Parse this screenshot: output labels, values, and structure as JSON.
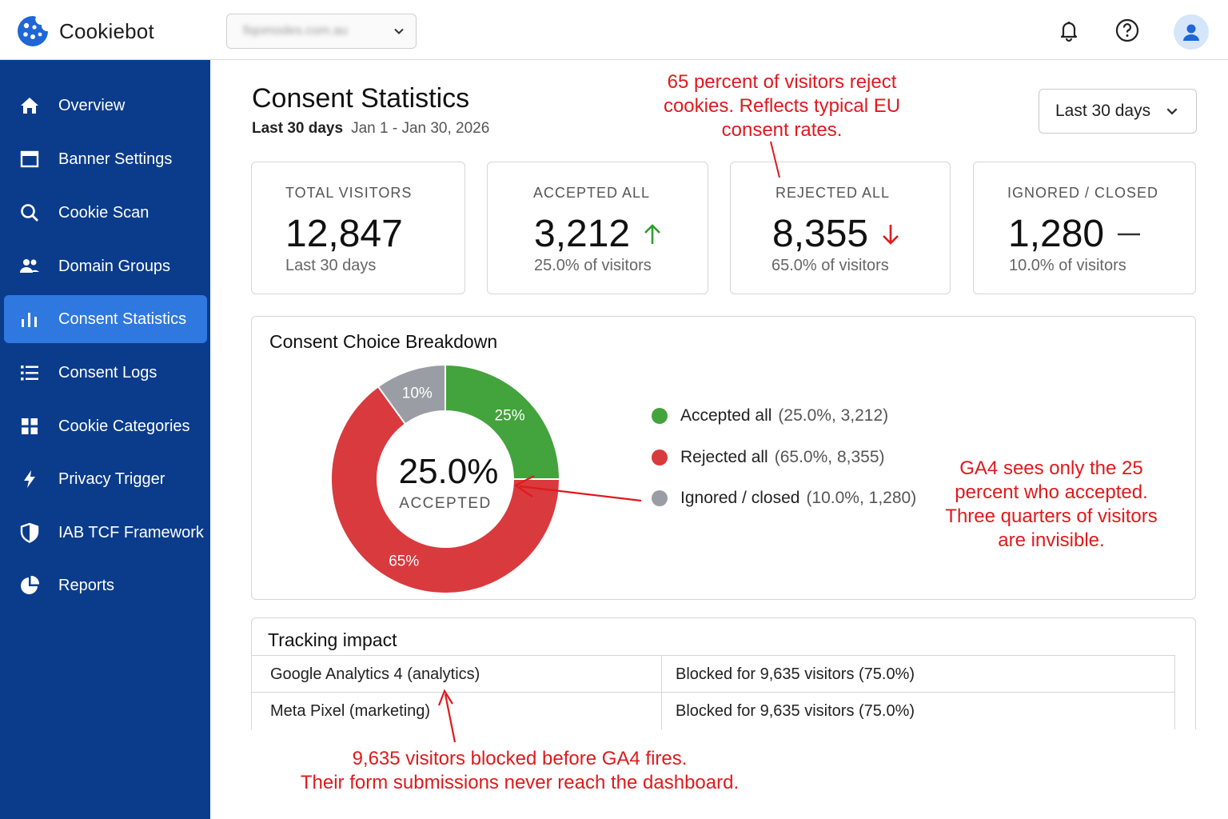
{
  "app": {
    "name": "Cookiebot",
    "domain_selector": "fiqomodes.com.au"
  },
  "sidebar": {
    "items": [
      {
        "label": "Overview",
        "icon": "home-icon"
      },
      {
        "label": "Banner Settings",
        "icon": "window-icon"
      },
      {
        "label": "Cookie Scan",
        "icon": "search-icon"
      },
      {
        "label": "Domain Groups",
        "icon": "users-icon"
      },
      {
        "label": "Consent Statistics",
        "icon": "bar-chart-icon",
        "active": true
      },
      {
        "label": "Consent Logs",
        "icon": "list-icon"
      },
      {
        "label": "Cookie Categories",
        "icon": "grid-icon"
      },
      {
        "label": "Privacy Trigger",
        "icon": "lightning-icon"
      },
      {
        "label": "IAB TCF Framework",
        "icon": "shield-icon"
      },
      {
        "label": "Reports",
        "icon": "pie-chart-icon"
      }
    ]
  },
  "page": {
    "title": "Consent Statistics",
    "period_label": "Last 30 days",
    "date_range": "Jan 1 - Jan 30, 2026",
    "range_select": "Last 30 days"
  },
  "stats": [
    {
      "label": "TOTAL VISITORS",
      "value": "12,847",
      "sub": "Last 30 days",
      "trend": "none"
    },
    {
      "label": "ACCEPTED ALL",
      "value": "3,212",
      "sub": "25.0% of visitors",
      "trend": "up"
    },
    {
      "label": "REJECTED ALL",
      "value": "8,355",
      "sub": "65.0% of visitors",
      "trend": "down"
    },
    {
      "label": "IGNORED / CLOSED",
      "value": "1,280",
      "sub": "10.0% of visitors",
      "trend": "flat"
    }
  ],
  "breakdown": {
    "title": "Consent Choice Breakdown",
    "center_value": "25.0%",
    "center_label": "ACCEPTED",
    "slice_labels": [
      "25%",
      "65%",
      "10%"
    ],
    "legend": [
      {
        "name": "Accepted all",
        "detail": "(25.0%, 3,212)",
        "color": "#43a33c"
      },
      {
        "name": "Rejected all",
        "detail": "(65.0%, 8,355)",
        "color": "#d93a3e"
      },
      {
        "name": "Ignored / closed",
        "detail": "(10.0%, 1,280)",
        "color": "#9a9ea4"
      }
    ]
  },
  "chart_data": {
    "type": "pie",
    "categories": [
      "Accepted all",
      "Rejected all",
      "Ignored / closed"
    ],
    "values": [
      25,
      65,
      10
    ],
    "counts": [
      3212,
      8355,
      1280
    ],
    "title": "Consent Choice Breakdown"
  },
  "tracking": {
    "title": "Tracking impact",
    "rows": [
      {
        "tool": "Google Analytics 4 (analytics)",
        "status": "Blocked for 9,635 visitors (75.0%)"
      },
      {
        "tool": "Meta Pixel (marketing)",
        "status": "Blocked for 9,635 visitors (75.0%)"
      }
    ]
  },
  "annotations": {
    "reject": "65 percent of visitors reject cookies. Reflects typical EU consent rates.",
    "ga4": "GA4 sees only the 25 percent who accepted. Three quarters of visitors are invisible.",
    "blocked_line1": "9,635 visitors blocked before GA4 fires.",
    "blocked_line2": "Their form submissions never reach the dashboard."
  },
  "colors": {
    "sidebar": "#0b3c8c",
    "active_nav": "#2f78e0",
    "accepted": "#43a33c",
    "rejected": "#d93a3e",
    "ignored": "#9a9ea4",
    "annotation": "#e0191c"
  }
}
